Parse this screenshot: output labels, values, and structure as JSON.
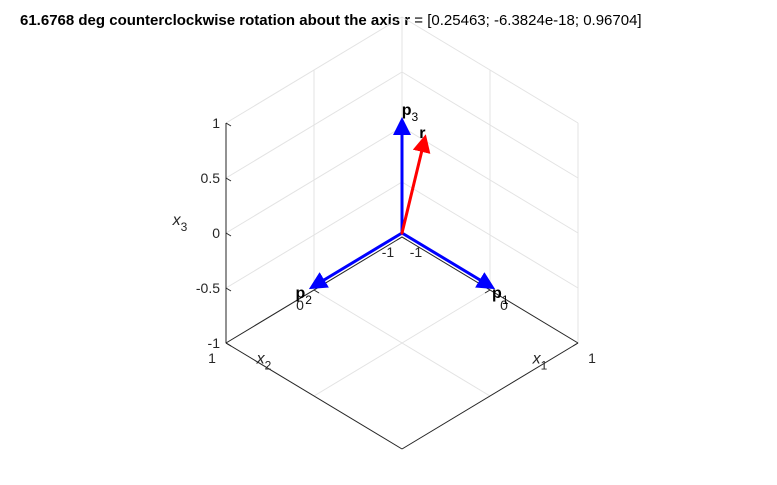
{
  "title": {
    "prefix": "61.6768 deg counterclockwise rotation about the axis ",
    "vector": "r",
    "suffix": " = [0.25463; -6.3824e-18; 0.96704]"
  },
  "chart_data": {
    "type": "quiver3d",
    "title": "61.6768 deg counterclockwise rotation about the axis r = [0.25463; -6.3824e-18; 0.96704]",
    "view": "isometric 3-D",
    "grid": true,
    "box": true,
    "axes": {
      "x1": {
        "label": "x",
        "subscript": "1",
        "lim": [
          -1,
          1
        ],
        "ticks": [
          -1,
          0,
          1
        ],
        "tick_labels": [
          "-1",
          "0",
          "1"
        ]
      },
      "x2": {
        "label": "x",
        "subscript": "2",
        "lim": [
          -1,
          1
        ],
        "ticks": [
          -1,
          0,
          1
        ],
        "tick_labels": [
          "-1",
          "0",
          "1"
        ]
      },
      "x3": {
        "label": "x",
        "subscript": "3",
        "lim": [
          -1,
          1
        ],
        "ticks": [
          -1,
          -0.5,
          0,
          0.5,
          1
        ],
        "tick_labels": [
          "-1",
          "-0.5",
          "0",
          "0.5",
          "1"
        ]
      }
    },
    "colors": {
      "p": "#0000ff",
      "r": "#ff0000",
      "grid": "#e3e3e3",
      "axes": "#262626"
    },
    "series": [
      {
        "name": "p1",
        "label": "p",
        "subscript": "1",
        "color": "#0000ff",
        "origin": [
          0,
          0,
          0
        ],
        "vector": [
          1,
          0,
          0
        ]
      },
      {
        "name": "p2",
        "label": "p",
        "subscript": "2",
        "color": "#0000ff",
        "origin": [
          0,
          0,
          0
        ],
        "vector": [
          0,
          1,
          0
        ]
      },
      {
        "name": "p3",
        "label": "p",
        "subscript": "3",
        "color": "#0000ff",
        "origin": [
          0,
          0,
          0
        ],
        "vector": [
          0,
          0,
          1
        ]
      },
      {
        "name": "r",
        "label": "r",
        "subscript": "",
        "color": "#ff0000",
        "origin": [
          0,
          0,
          0
        ],
        "vector": [
          0.25463,
          -6.3824e-18,
          0.96704
        ]
      }
    ]
  }
}
